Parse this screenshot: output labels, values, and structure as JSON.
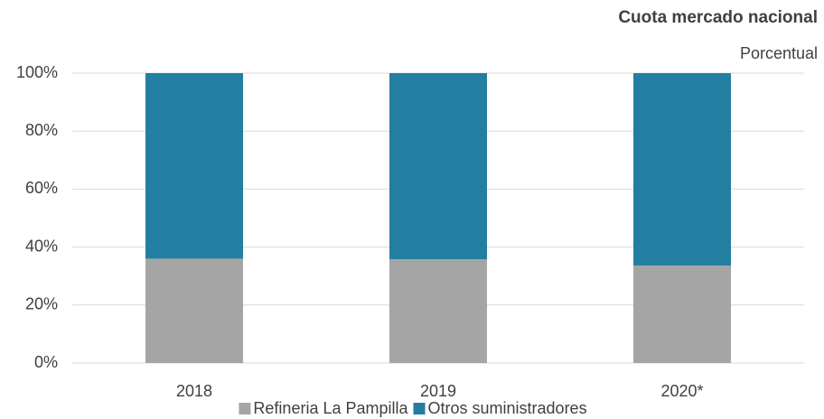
{
  "chart_data": {
    "type": "stacked_bar",
    "title": "Cuota mercado nacional",
    "subtitle": "Porcentual",
    "categories": [
      "2018",
      "2019",
      "2020*"
    ],
    "series": [
      {
        "name": "Refineria La Pampilla",
        "color": "#a5a5a5",
        "values": [
          36,
          35.8,
          33.6
        ]
      },
      {
        "name": "Otros suministradores",
        "color": "#237fa1",
        "values": [
          64,
          64.2,
          66.4
        ]
      }
    ],
    "ylim": [
      0,
      100
    ],
    "yticks": [
      {
        "value": 0,
        "label": "0%"
      },
      {
        "value": 20,
        "label": "20%"
      },
      {
        "value": 40,
        "label": "40%"
      },
      {
        "value": 60,
        "label": "60%"
      },
      {
        "value": 80,
        "label": "80%"
      },
      {
        "value": 100,
        "label": "100%"
      }
    ],
    "grid": true,
    "legend": "bottom"
  }
}
